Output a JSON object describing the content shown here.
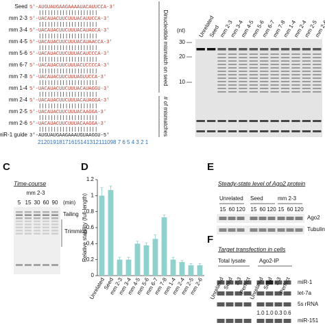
{
  "panel_a": {
    "rows": [
      {
        "label": "Seed",
        "sequence": "5'-AUGUAUGAAGAAAAUACAUUCCA-3'"
      },
      {
        "label": "mm 2-3",
        "sequence": "5'-UACAUACUUCUUUACAUUCCA-3'"
      },
      {
        "label": "mm 3-4",
        "sequence": "5'-UACAUACUUCUUUACAUAGCA-3'"
      },
      {
        "label": "mm 4-5",
        "sequence": "5'-UACAUACUUCUUUACAUAACCA-3'"
      },
      {
        "label": "mm 5-6",
        "sequence": "5'-UACAUACUUCUUUACAUCCCA-3'"
      },
      {
        "label": "mm 6-7",
        "sequence": "5'-UACAUACUUCUUUACUCCCCA-3'"
      },
      {
        "label": "mm 7-8",
        "sequence": "5'-UACAUACUUCUUUAGUUCCA-3'"
      },
      {
        "label": "mm 1-4",
        "sequence": "5'-UACAUACUUCUUUACAUAGGU-3'"
      },
      {
        "label": "mm 2-4",
        "sequence": "5'-UACAUACUUCUUUACAUAGGA-3'"
      },
      {
        "label": "mm 2-5",
        "sequence": "5'-UACAUACUUCUUUACAAGGA-3'"
      },
      {
        "label": "mm 2-6",
        "sequence": "5'-UACAUACUUCUUUACAAGGA-3'"
      }
    ],
    "guide": {
      "label": "miR-1 guide",
      "sequence": "3'-AUGUAUGAAGAAAUGUAAGGU-5'"
    },
    "positions": "21201918171615141312111098 7 6 5 4 3 2 1",
    "side_labels": [
      "Dinucleotide mismatch on seed",
      "# of mismatches"
    ]
  },
  "panel_b": {
    "unit": "(nt)",
    "markers": [
      30,
      20,
      10
    ],
    "lanes": [
      "Unrelated",
      "Seed",
      "mm 2-3",
      "mm 3-4",
      "mm 4-5",
      "mm 5-6",
      "mm 6-7",
      "mm 7-8",
      "mm 1-4",
      "mm 2-4",
      "mm 2-5",
      "mm 2-6"
    ]
  },
  "panel_c": {
    "letter": "C",
    "title": "Time-course",
    "condition": "mm 2-3",
    "times": [
      5,
      15,
      30,
      60,
      90
    ],
    "time_unit": "(min)",
    "annotations": [
      "Tailing",
      "Trimming"
    ]
  },
  "panel_d": {
    "letter": "D",
    "type": "bar",
    "y_label": "Relative stability (full-length)",
    "categories": [
      "Unrelated",
      "Seed",
      "mm 2-3",
      "mm 3-4",
      "mm 4-5",
      "mm 5-6",
      "mm 6-7",
      "mm 7-8",
      "mm 1-4",
      "mm 2-4",
      "mm 2-5",
      "mm 2-6"
    ],
    "values": [
      1.0,
      1.07,
      0.2,
      0.2,
      0.4,
      0.38,
      0.46,
      0.73,
      0.2,
      0.17,
      0.13,
      0.13
    ],
    "errors": [
      0.1,
      0.05,
      0.03,
      0.03,
      0.03,
      0.03,
      0.05,
      0.03,
      0.03,
      0.02,
      0.02,
      0.02
    ],
    "color": "#8fd1cd",
    "ylim": [
      0,
      1.2
    ],
    "yticks": [
      0,
      0.2,
      0.4,
      0.6,
      0.8,
      1,
      1.2
    ]
  },
  "panel_e": {
    "letter": "E",
    "title": "Steady-state level of Ago2 protein",
    "groups": [
      "Unrelated",
      "Seed",
      "mm 2-3"
    ],
    "times": [
      15,
      60,
      120
    ],
    "proteins": [
      "Ago2",
      "Tubulin"
    ]
  },
  "panel_f": {
    "letter": "F",
    "title": "Target transfection in cells",
    "fractions": [
      "Total lysate",
      "Ago2-IP"
    ],
    "lanes": [
      "Unrelated",
      "Seed",
      "2-3",
      "Perfect"
    ],
    "rnas": [
      "miR-1",
      "let-7a",
      "5s rRNA",
      "miR-151"
    ],
    "quantification": [
      "1.0",
      "1.0",
      "0.3",
      "0.6"
    ]
  }
}
